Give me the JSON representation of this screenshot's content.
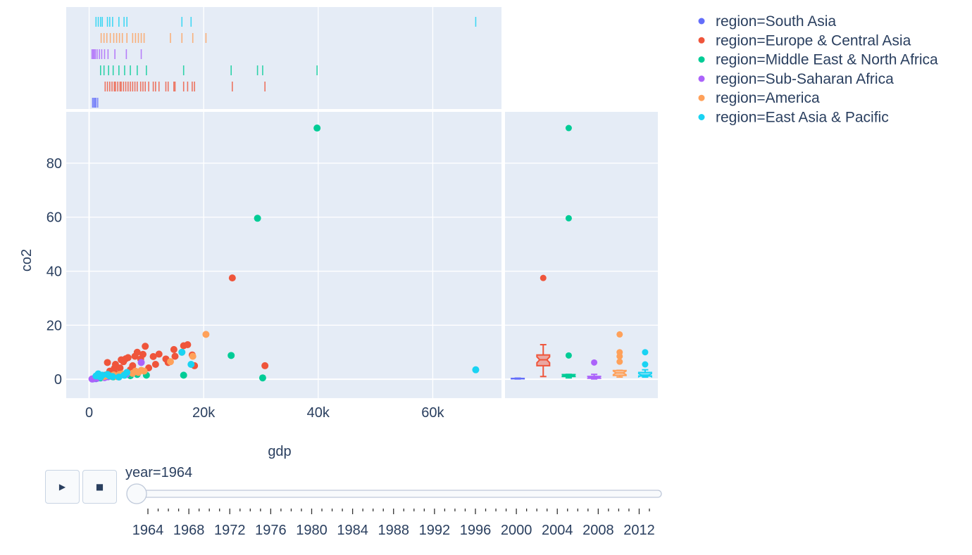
{
  "chart_data": {
    "type": "scatter",
    "title": "",
    "xlabel": "gdp",
    "ylabel": "co2",
    "xlim": [
      -4000,
      72000
    ],
    "ylim": [
      -7,
      99
    ],
    "x_ticks": [
      {
        "v": 0,
        "label": "0"
      },
      {
        "v": 20000,
        "label": "20k"
      },
      {
        "v": 40000,
        "label": "40k"
      },
      {
        "v": 60000,
        "label": "60k"
      }
    ],
    "y_ticks": [
      {
        "v": 0,
        "label": "0"
      },
      {
        "v": 20,
        "label": "20"
      },
      {
        "v": 40,
        "label": "40"
      },
      {
        "v": 60,
        "label": "60"
      },
      {
        "v": 80,
        "label": "80"
      }
    ],
    "grid": true,
    "legend_position": "top-right, outside plot",
    "marginal_x": "rug",
    "marginal_y": "box (notched)",
    "series": [
      {
        "name": "region=South Asia",
        "color": "#636efa",
        "points": [
          [
            600,
            0.1
          ],
          [
            800,
            0.2
          ],
          [
            1000,
            0.3
          ],
          [
            1200,
            0.2
          ],
          [
            1500,
            0.4
          ]
        ]
      },
      {
        "name": "region=Europe & Central Asia",
        "color": "#ef553b",
        "points": [
          [
            2800,
            1.5
          ],
          [
            3200,
            6.2
          ],
          [
            3600,
            3.0
          ],
          [
            4000,
            1.0
          ],
          [
            4400,
            4.0
          ],
          [
            4600,
            5.5
          ],
          [
            5000,
            2.0
          ],
          [
            5400,
            4.2
          ],
          [
            5600,
            7.2
          ],
          [
            6000,
            6.5
          ],
          [
            6400,
            7.6
          ],
          [
            6800,
            8.0
          ],
          [
            7200,
            3.5
          ],
          [
            7600,
            5.0
          ],
          [
            8000,
            8.5
          ],
          [
            8400,
            10.0
          ],
          [
            9000,
            7.5
          ],
          [
            9400,
            9.2
          ],
          [
            9800,
            12.2
          ],
          [
            10400,
            4.2
          ],
          [
            11200,
            8.4
          ],
          [
            11600,
            5.5
          ],
          [
            12200,
            9.3
          ],
          [
            13400,
            7.5
          ],
          [
            13800,
            6.2
          ],
          [
            14800,
            11.0
          ],
          [
            15000,
            8.5
          ],
          [
            16500,
            12.4
          ],
          [
            17200,
            12.8
          ],
          [
            18000,
            9.0
          ],
          [
            18400,
            5.0
          ],
          [
            25000,
            37.5
          ],
          [
            30700,
            5.0
          ]
        ]
      },
      {
        "name": "region=Middle East & North Africa",
        "color": "#00cc96",
        "points": [
          [
            2000,
            0.5
          ],
          [
            2600,
            1.0
          ],
          [
            3400,
            1.2
          ],
          [
            4200,
            0.9
          ],
          [
            5200,
            1.0
          ],
          [
            6200,
            1.5
          ],
          [
            7200,
            1.3
          ],
          [
            8400,
            1.8
          ],
          [
            10000,
            1.5
          ],
          [
            16500,
            1.5
          ],
          [
            24800,
            8.8
          ],
          [
            29400,
            59.6
          ],
          [
            30300,
            0.5
          ],
          [
            39800,
            93.0
          ]
        ]
      },
      {
        "name": "region=Sub-Saharan Africa",
        "color": "#ab63fa",
        "points": [
          [
            500,
            0.1
          ],
          [
            700,
            0.2
          ],
          [
            900,
            0.3
          ],
          [
            1100,
            0.5
          ],
          [
            1400,
            0.4
          ],
          [
            1800,
            0.8
          ],
          [
            2200,
            1.0
          ],
          [
            2700,
            0.6
          ],
          [
            3300,
            0.9
          ],
          [
            4500,
            1.2
          ],
          [
            6500,
            1.8
          ],
          [
            9100,
            6.2
          ]
        ]
      },
      {
        "name": "region=America",
        "color": "#ffa15a",
        "points": [
          [
            2100,
            0.8
          ],
          [
            2600,
            1.0
          ],
          [
            3100,
            1.3
          ],
          [
            3700,
            1.2
          ],
          [
            4300,
            1.6
          ],
          [
            4800,
            1.0
          ],
          [
            5300,
            1.8
          ],
          [
            5800,
            2.0
          ],
          [
            6600,
            2.5
          ],
          [
            7600,
            2.2
          ],
          [
            8100,
            3.0
          ],
          [
            8600,
            2.5
          ],
          [
            9100,
            3.3
          ],
          [
            9600,
            3.0
          ],
          [
            14200,
            6.5
          ],
          [
            16200,
            10.0
          ],
          [
            18100,
            8.5
          ],
          [
            20400,
            16.6
          ]
        ]
      },
      {
        "name": "region=East Asia & Pacific",
        "color": "#19d3f3",
        "points": [
          [
            1200,
            1.2
          ],
          [
            1600,
            2.0
          ],
          [
            2000,
            0.8
          ],
          [
            2300,
            1.5
          ],
          [
            3200,
            1.8
          ],
          [
            3600,
            1.2
          ],
          [
            4100,
            1.0
          ],
          [
            5200,
            0.8
          ],
          [
            6100,
            1.5
          ],
          [
            6600,
            2.5
          ],
          [
            16200,
            10.0
          ],
          [
            17800,
            5.5
          ],
          [
            67500,
            3.5
          ]
        ]
      }
    ]
  },
  "slider": {
    "current_label": "year=1964",
    "value": 1964,
    "tick_labels": [
      "1964",
      "1968",
      "1972",
      "1976",
      "1980",
      "1984",
      "1988",
      "1992",
      "1996",
      "2000",
      "2004",
      "2008",
      "2012"
    ]
  },
  "buttons": {
    "play_icon": "play-icon",
    "stop_icon": "stop-icon"
  }
}
